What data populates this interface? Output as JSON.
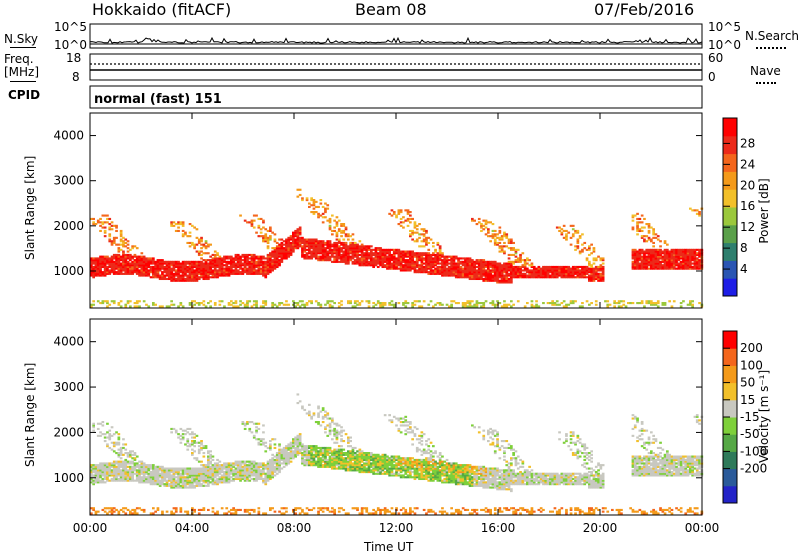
{
  "header": {
    "title": "Hokkaido (fitACF)",
    "beam": "Beam 08",
    "date": "07/Feb/2016"
  },
  "noise_panel": {
    "left_label": "N.Sky",
    "right_label": "N.Search",
    "top_tick": "10^5",
    "bottom_tick": "10^0"
  },
  "freq_panel": {
    "left_label_1": "Freq.",
    "left_label_2": "[MHz]",
    "left_top_tick": "18",
    "left_bottom_tick": "8",
    "right_label": "Nave",
    "right_top_tick": "60",
    "right_bottom_tick": "0"
  },
  "cpid": {
    "label": "CPID",
    "value": "normal (fast) 151"
  },
  "chart_data": [
    {
      "type": "heatmap",
      "name": "power-panel",
      "ylabel": "Slant Range [km]",
      "yticks": [
        "1000",
        "2000",
        "3000",
        "4000"
      ],
      "ylim": [
        180,
        4500
      ],
      "xticks": [
        "00:00",
        "04:00",
        "08:00",
        "12:00",
        "16:00",
        "20:00",
        "00:00"
      ],
      "xlim": [
        0,
        24
      ],
      "colorbar": {
        "label": "Power [dB]",
        "ticks": [
          "4",
          "8",
          "12",
          "16",
          "20",
          "24",
          "28"
        ],
        "colors": [
          "#1e1ee6",
          "#2a55b3",
          "#2e7f6e",
          "#5aa04a",
          "#9bc83c",
          "#f2c02a",
          "#f49a1a",
          "#f4661c",
          "#ec2a1a",
          "#ff0000"
        ]
      }
    },
    {
      "type": "heatmap",
      "name": "velocity-panel",
      "ylabel": "Slant Range [km]",
      "yticks": [
        "1000",
        "2000",
        "3000",
        "4000"
      ],
      "ylim": [
        180,
        4500
      ],
      "xticks": [
        "00:00",
        "04:00",
        "08:00",
        "12:00",
        "16:00",
        "20:00",
        "00:00"
      ],
      "xlabel": "Time UT",
      "xlim": [
        0,
        24
      ],
      "colorbar": {
        "label": "Velocity [m s⁻¹]",
        "ticks": [
          "200",
          "100",
          "50",
          "15",
          "-15",
          "-50",
          "-100",
          "-200"
        ],
        "colors": [
          "#2323c8",
          "#2a5a9a",
          "#2e7a5a",
          "#55a845",
          "#7ed03a",
          "#c8c8c0",
          "#f2c02a",
          "#f49a1a",
          "#f4661c",
          "#ff0000"
        ]
      }
    }
  ]
}
